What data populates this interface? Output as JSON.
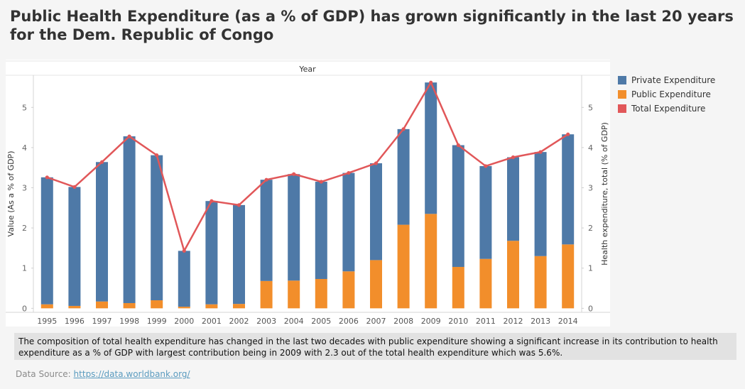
{
  "title": "Public Health Expenditure (as a % of GDP) has grown significantly in the last 20 years for the Dem. Republic of Congo",
  "caption": "The composition of total health expenditure has changed in the last two decades with public expenditure showing a significant increase in its contribution to health expenditure as a % of GDP with largest contribution being in 2009 with 2.3 out of the total health expenditure which was 5.6%.",
  "source": {
    "label": "Data Source: ",
    "link_text": "https://data.worldbank.org/"
  },
  "chart_data": {
    "type": "bar",
    "stacked": true,
    "column_header": "Year",
    "categories": [
      "1995",
      "1996",
      "1997",
      "1998",
      "1999",
      "2000",
      "2001",
      "2002",
      "2003",
      "2004",
      "2005",
      "2006",
      "2007",
      "2008",
      "2009",
      "2010",
      "2011",
      "2012",
      "2013",
      "2014"
    ],
    "series": [
      {
        "name": "Public Expenditure",
        "color": "#f28e2b",
        "values": [
          0.1,
          0.06,
          0.17,
          0.13,
          0.2,
          0.04,
          0.1,
          0.11,
          0.68,
          0.69,
          0.73,
          0.92,
          1.2,
          2.08,
          2.35,
          1.03,
          1.23,
          1.68,
          1.3,
          1.59
        ]
      },
      {
        "name": "Private Expenditure",
        "color": "#4e79a7",
        "values": [
          3.16,
          2.96,
          3.47,
          4.15,
          3.61,
          1.39,
          2.57,
          2.46,
          2.52,
          2.65,
          2.42,
          2.45,
          2.41,
          2.38,
          3.27,
          3.03,
          2.31,
          2.08,
          2.59,
          2.74
        ]
      }
    ],
    "line": {
      "name": "Total Expenditure",
      "color": "#e15759",
      "values": [
        3.26,
        3.02,
        3.64,
        4.28,
        3.81,
        1.43,
        2.67,
        2.57,
        3.2,
        3.34,
        3.15,
        3.37,
        3.61,
        4.46,
        5.62,
        4.06,
        3.54,
        3.76,
        3.89,
        4.33
      ]
    },
    "legend_order": [
      "Private Expenditure",
      "Public Expenditure",
      "Total Expenditure"
    ],
    "ylabel": "Value (As a % of GDP)",
    "y2label": "Health expenditure, total (% of GDP)",
    "ylim": [
      -0.1,
      5.8
    ],
    "yticks": [
      0,
      1,
      2,
      3,
      4,
      5
    ],
    "legend_position": "right",
    "grid": false
  }
}
